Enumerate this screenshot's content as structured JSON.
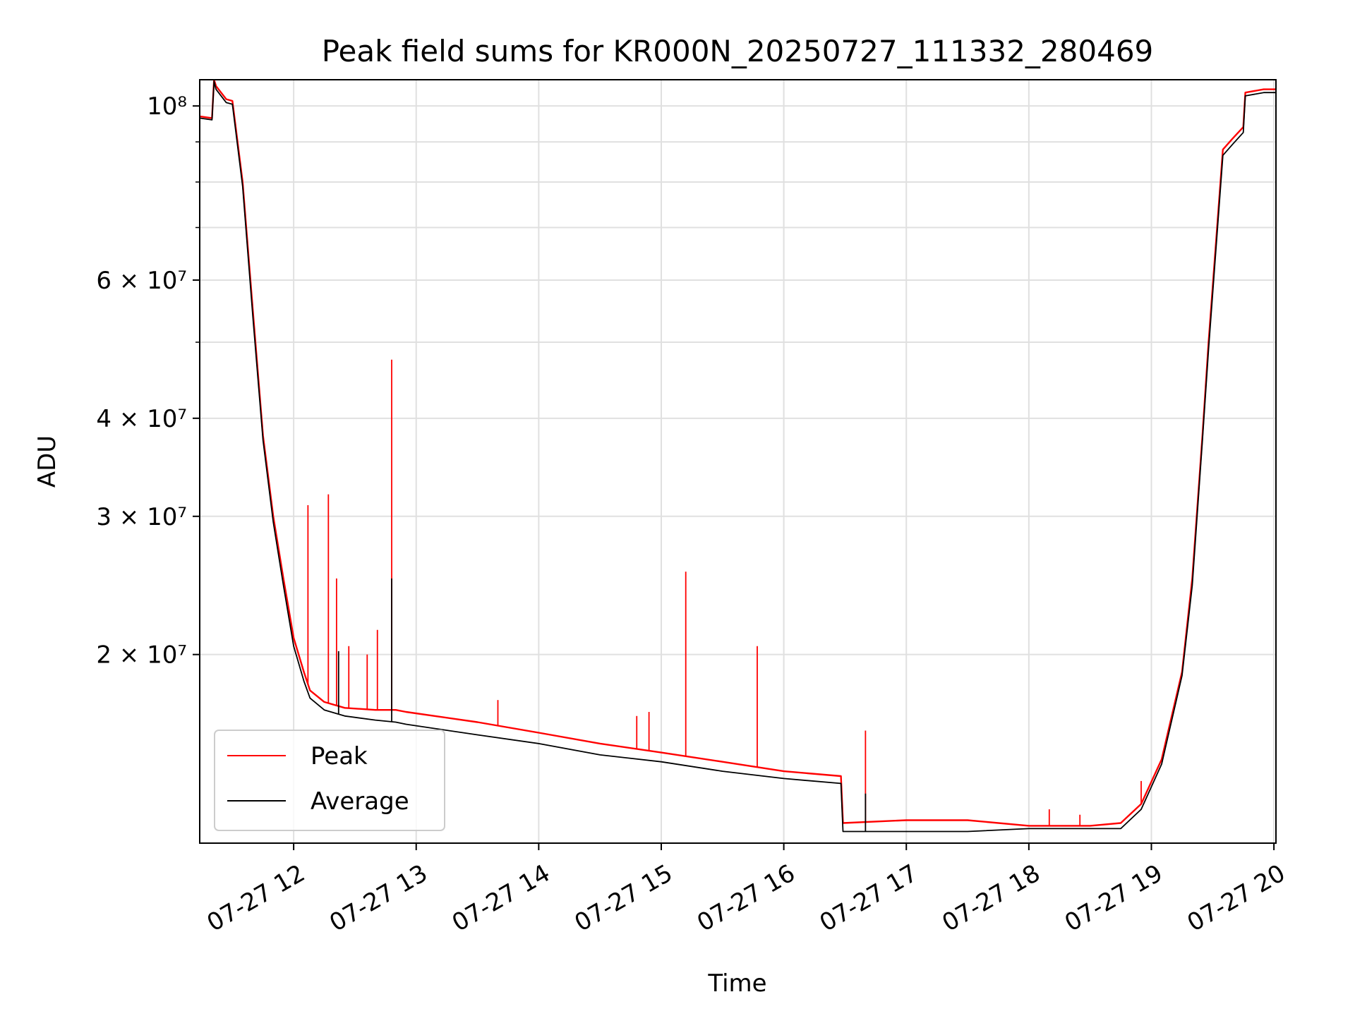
{
  "chart_data": {
    "type": "line",
    "title": "Peak field sums for KR000N_20250727_111332_280469",
    "xlabel": "Time",
    "ylabel": "ADU",
    "y_scale": "log",
    "grid": true,
    "legend_position": "lower-left",
    "x_range": [
      "07-27 11:14",
      "07-27 20:01"
    ],
    "ylim": [
      11500000,
      108000000
    ],
    "x_ticks": [
      "07-27 12",
      "07-27 13",
      "07-27 14",
      "07-27 15",
      "07-27 16",
      "07-27 17",
      "07-27 18",
      "07-27 19",
      "07-27 20"
    ],
    "y_ticks": [
      {
        "value": 20000000,
        "label": "2 × 10⁷"
      },
      {
        "value": 30000000,
        "label": "3 × 10⁷"
      },
      {
        "value": 40000000,
        "label": "4 × 10⁷"
      },
      {
        "value": 60000000,
        "label": "6 × 10⁷"
      },
      {
        "value": 100000000,
        "label": "10⁸"
      }
    ],
    "y_minor_ticks": [
      50000000,
      70000000,
      80000000,
      90000000
    ],
    "series": [
      {
        "name": "Peak",
        "color": "#ff0000",
        "x": [
          "07-27 11:14",
          "07-27 11:20",
          "07-27 11:21",
          "07-27 11:22",
          "07-27 11:27",
          "07-27 11:30",
          "07-27 11:35",
          "07-27 11:40",
          "07-27 11:45",
          "07-27 11:50",
          "07-27 11:55",
          "07-27 12:00",
          "07-27 12:05",
          "07-27 12:08",
          "07-27 12:15",
          "07-27 12:25",
          "07-27 12:40",
          "07-27 12:50",
          "07-27 12:55",
          "07-27 13:30",
          "07-27 14:00",
          "07-27 14:30",
          "07-27 15:00",
          "07-27 15:30",
          "07-27 16:00",
          "07-27 16:28",
          "07-27 16:29",
          "07-27 17:00",
          "07-27 17:30",
          "07-27 18:00",
          "07-27 18:30",
          "07-27 18:45",
          "07-27 18:55",
          "07-27 19:05",
          "07-27 19:15",
          "07-27 19:20",
          "07-27 19:25",
          "07-27 19:28",
          "07-27 19:35",
          "07-27 19:40",
          "07-27 19:45",
          "07-27 19:46",
          "07-27 19:55",
          "07-27 20:01"
        ],
        "y": [
          97000000,
          96500000,
          108000000,
          106000000,
          102000000,
          101500000,
          80000000,
          55000000,
          38000000,
          30000000,
          25000000,
          21000000,
          19000000,
          18000000,
          17400000,
          17100000,
          17000000,
          17000000,
          16900000,
          16400000,
          15900000,
          15400000,
          15000000,
          14600000,
          14200000,
          14000000,
          12200000,
          12300000,
          12300000,
          12100000,
          12100000,
          12200000,
          12900000,
          14700000,
          19000000,
          25000000,
          38000000,
          50000000,
          88000000,
          91000000,
          94000000,
          104000000,
          105000000,
          105000000
        ],
        "spikes": [
          {
            "x": "07-27 12:07",
            "y": 31000000
          },
          {
            "x": "07-27 12:17",
            "y": 32000000
          },
          {
            "x": "07-27 12:21",
            "y": 25000000
          },
          {
            "x": "07-27 12:27",
            "y": 20500000
          },
          {
            "x": "07-27 12:36",
            "y": 20000000
          },
          {
            "x": "07-27 12:41",
            "y": 21500000
          },
          {
            "x": "07-27 12:48",
            "y": 47500000
          },
          {
            "x": "07-27 13:40",
            "y": 17500000
          },
          {
            "x": "07-27 14:48",
            "y": 16700000
          },
          {
            "x": "07-27 14:54",
            "y": 16900000
          },
          {
            "x": "07-27 15:12",
            "y": 25500000
          },
          {
            "x": "07-27 15:47",
            "y": 20500000
          },
          {
            "x": "07-27 16:40",
            "y": 16000000
          },
          {
            "x": "07-27 18:10",
            "y": 12700000
          },
          {
            "x": "07-27 18:25",
            "y": 12500000
          },
          {
            "x": "07-27 18:55",
            "y": 13800000
          }
        ]
      },
      {
        "name": "Average",
        "color": "#000000",
        "x": [
          "07-27 11:14",
          "07-27 11:20",
          "07-27 11:21",
          "07-27 11:22",
          "07-27 11:27",
          "07-27 11:30",
          "07-27 11:35",
          "07-27 11:40",
          "07-27 11:45",
          "07-27 11:50",
          "07-27 11:55",
          "07-27 12:00",
          "07-27 12:05",
          "07-27 12:08",
          "07-27 12:15",
          "07-27 12:25",
          "07-27 12:40",
          "07-27 12:50",
          "07-27 12:55",
          "07-27 13:30",
          "07-27 14:00",
          "07-27 14:30",
          "07-27 15:00",
          "07-27 15:30",
          "07-27 16:00",
          "07-27 16:28",
          "07-27 16:29",
          "07-27 17:00",
          "07-27 17:30",
          "07-27 18:00",
          "07-27 18:30",
          "07-27 18:45",
          "07-27 18:55",
          "07-27 19:05",
          "07-27 19:15",
          "07-27 19:20",
          "07-27 19:25",
          "07-27 19:28",
          "07-27 19:35",
          "07-27 19:40",
          "07-27 19:45",
          "07-27 19:46",
          "07-27 19:55",
          "07-27 20:01"
        ],
        "y": [
          96500000,
          96000000,
          107500000,
          105000000,
          101000000,
          100500000,
          79000000,
          54000000,
          37500000,
          29500000,
          24500000,
          20500000,
          18500000,
          17600000,
          17000000,
          16700000,
          16500000,
          16400000,
          16300000,
          15800000,
          15400000,
          14900000,
          14600000,
          14200000,
          13900000,
          13700000,
          11900000,
          11900000,
          11900000,
          12000000,
          12000000,
          12000000,
          12700000,
          14500000,
          18800000,
          24500000,
          37500000,
          49000000,
          86500000,
          89500000,
          92500000,
          103000000,
          104000000,
          104000000
        ],
        "spikes": [
          {
            "x": "07-27 12:48",
            "y": 25000000
          },
          {
            "x": "07-27 12:22",
            "y": 20200000
          },
          {
            "x": "07-27 16:40",
            "y": 13300000
          }
        ]
      }
    ]
  }
}
